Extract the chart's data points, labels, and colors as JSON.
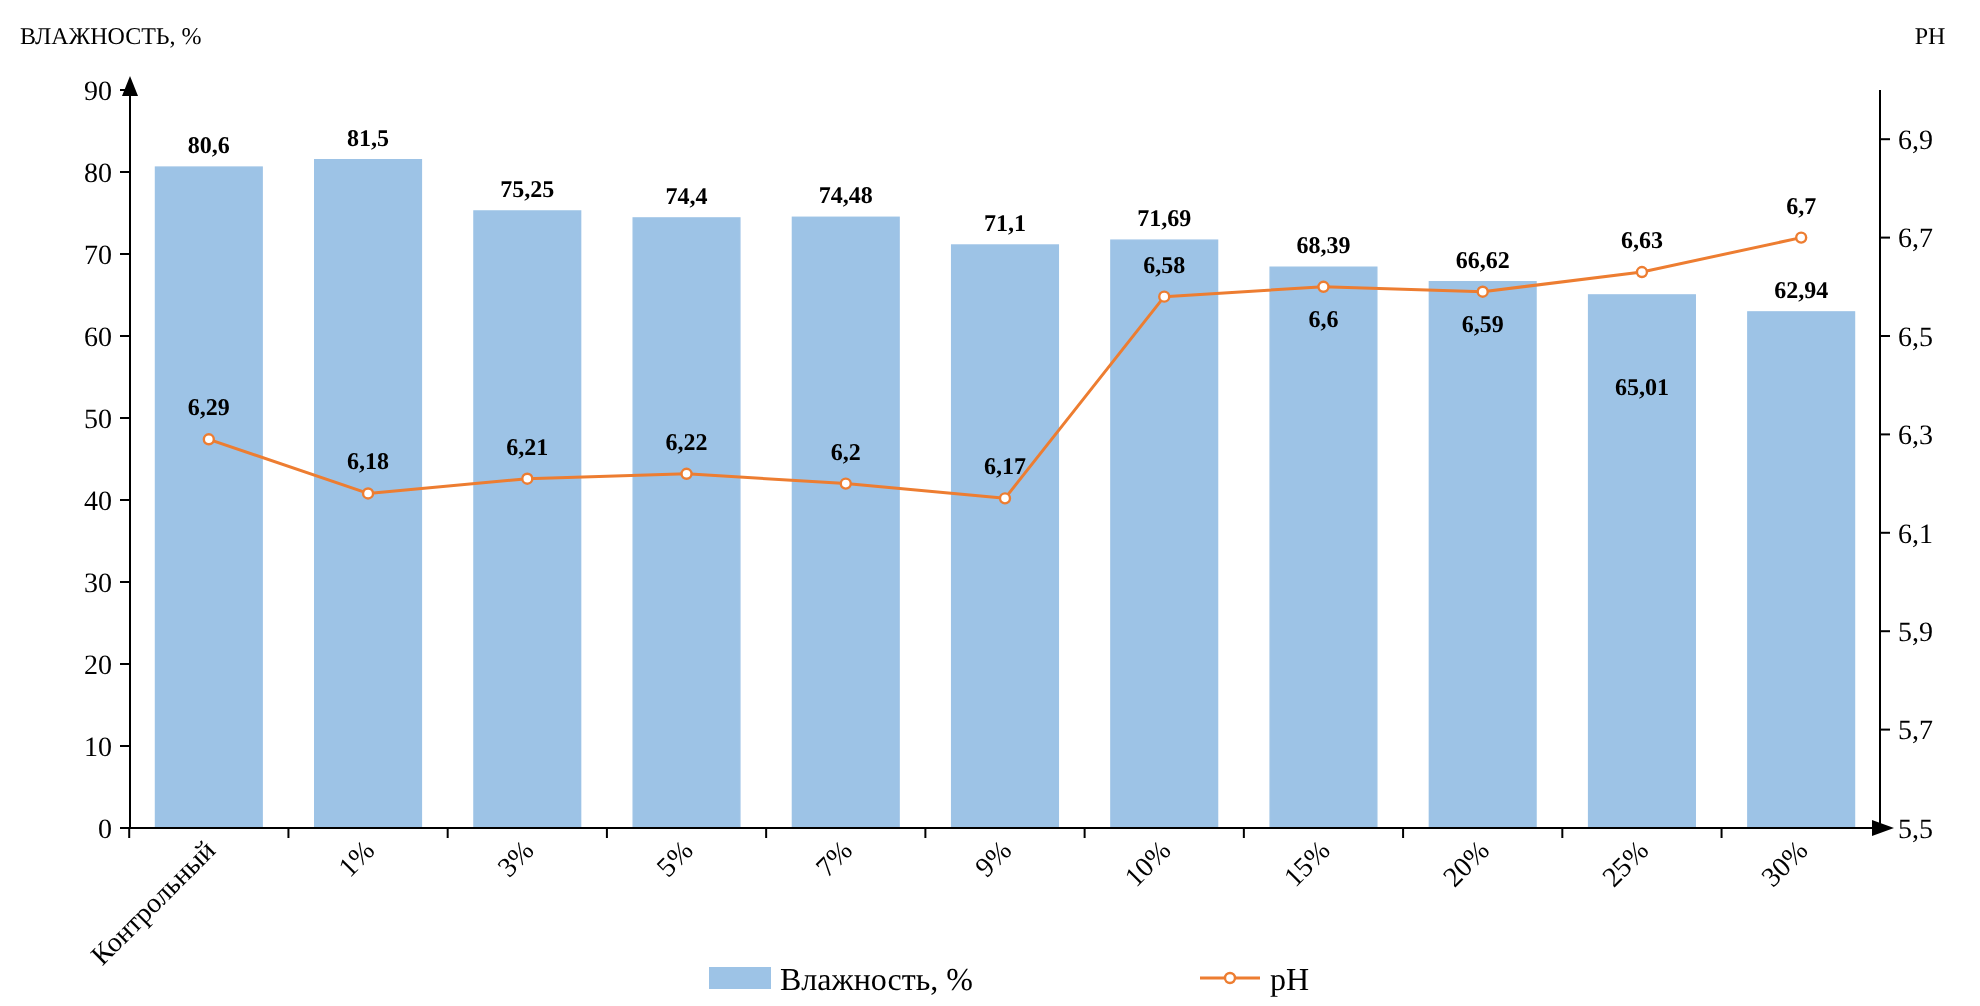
{
  "chart_data": {
    "type": "bar",
    "ylabel": "ВЛАЖНОСТЬ, %",
    "y2label": "PH",
    "categories": [
      "Контрольный",
      "1%",
      "3%",
      "5%",
      "7%",
      "9%",
      "10%",
      "15%",
      "20%",
      "25%",
      "30%"
    ],
    "series": [
      {
        "name": "Влажность, %",
        "color": "#9dc3e6",
        "values": [
          80.6,
          81.5,
          75.25,
          74.4,
          74.48,
          71.1,
          71.69,
          68.39,
          66.62,
          65.01,
          62.94
        ],
        "value_labels": [
          "80,6",
          "81,5",
          "75,25",
          "74,4",
          "74,48",
          "71,1",
          "71,69",
          "68,39",
          "66,62",
          "65,01",
          "62,94"
        ]
      },
      {
        "name": "pH",
        "type": "line",
        "axis": "y2",
        "color": "#ed7d31",
        "marker": "circle",
        "values": [
          6.29,
          6.18,
          6.21,
          6.22,
          6.2,
          6.17,
          6.58,
          6.6,
          6.59,
          6.63,
          6.7
        ],
        "value_labels": [
          "6,29",
          "6,18",
          "6,21",
          "6,22",
          "6,2",
          "6,17",
          "6,58",
          "6,6",
          "6,59",
          "6,63",
          "6,7"
        ]
      }
    ],
    "ylim": [
      0,
      90
    ],
    "yticks": [
      0,
      10,
      20,
      30,
      40,
      50,
      60,
      70,
      80,
      90
    ],
    "y2lim": [
      5.5,
      7.0
    ],
    "y2ticks": [
      {
        "value": 5.5,
        "label": "5,5"
      },
      {
        "value": 5.7,
        "label": "5,7"
      },
      {
        "value": 5.9,
        "label": "5,9"
      },
      {
        "value": 6.1,
        "label": "6,1"
      },
      {
        "value": 6.3,
        "label": "6,3"
      },
      {
        "value": 6.5,
        "label": "6,5"
      },
      {
        "value": 6.7,
        "label": "6,7"
      },
      {
        "value": 6.9,
        "label": "6,9"
      }
    ],
    "grid": false,
    "legend": "bottom"
  }
}
